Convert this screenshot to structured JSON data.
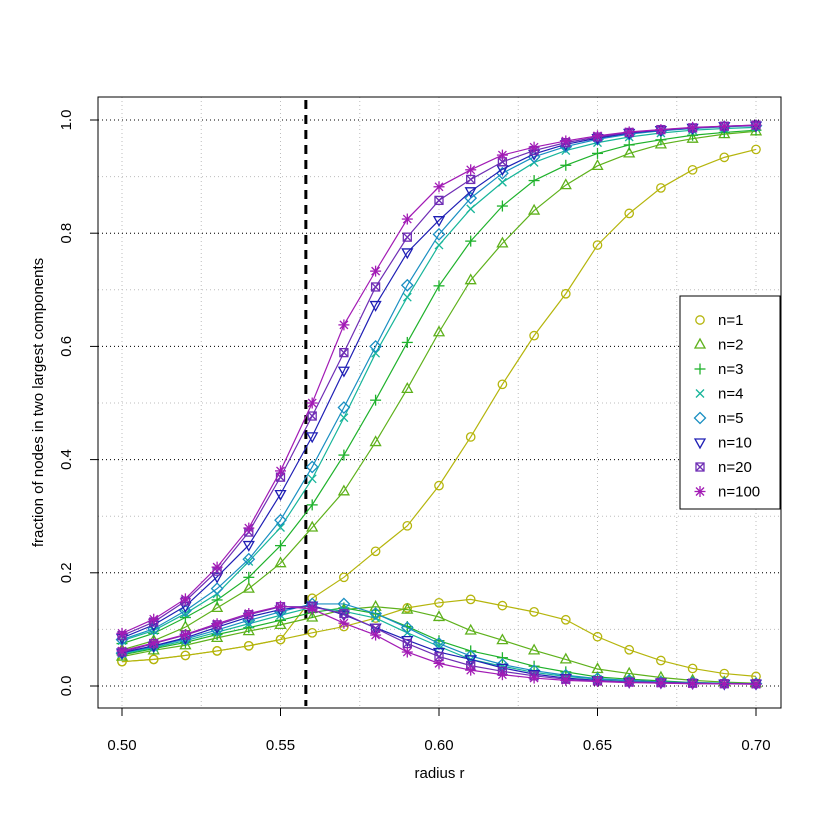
{
  "chart_data": {
    "type": "line",
    "xlabel": "radius r",
    "ylabel": "fraction of nodes in two largest components",
    "xlim": [
      0.5,
      0.7
    ],
    "ylim": [
      0.0,
      1.0
    ],
    "x_ticks": [
      "0.50",
      "0.55",
      "0.60",
      "0.65",
      "0.70"
    ],
    "y_ticks": [
      "0.0",
      "0.2",
      "0.4",
      "0.6",
      "0.8",
      "1.0"
    ],
    "grid": true,
    "legend_position": "right",
    "vline": {
      "x": 0.558,
      "style": "dashed",
      "color": "#000000"
    },
    "x": [
      0.5,
      0.51,
      0.52,
      0.53,
      0.54,
      0.55,
      0.56,
      0.57,
      0.58,
      0.59,
      0.6,
      0.61,
      0.62,
      0.63,
      0.64,
      0.65,
      0.66,
      0.67,
      0.68,
      0.69,
      0.7
    ],
    "series": [
      {
        "name": "n=1",
        "color": "#b5b50c",
        "marker": "circle",
        "largest": [
          0.043,
          0.047,
          0.054,
          0.062,
          0.071,
          0.082,
          0.155,
          0.192,
          0.238,
          0.283,
          0.354,
          0.44,
          0.533,
          0.619,
          0.693,
          0.779,
          0.835,
          0.88,
          0.912,
          0.934,
          0.948
        ],
        "second": [
          0.043,
          0.047,
          0.054,
          0.062,
          0.071,
          0.082,
          0.094,
          0.105,
          0.12,
          0.138,
          0.147,
          0.153,
          0.142,
          0.131,
          0.117,
          0.087,
          0.064,
          0.045,
          0.031,
          0.022,
          0.017
        ]
      },
      {
        "name": "n=2",
        "color": "#5eb11b",
        "marker": "triangle",
        "largest": [
          0.064,
          0.08,
          0.104,
          0.138,
          0.172,
          0.217,
          0.28,
          0.344,
          0.431,
          0.525,
          0.625,
          0.717,
          0.782,
          0.84,
          0.885,
          0.919,
          0.941,
          0.957,
          0.967,
          0.975,
          0.98
        ],
        "second": [
          0.052,
          0.063,
          0.072,
          0.085,
          0.097,
          0.108,
          0.121,
          0.135,
          0.14,
          0.135,
          0.122,
          0.098,
          0.081,
          0.063,
          0.047,
          0.03,
          0.022,
          0.015,
          0.01,
          0.007,
          0.005
        ]
      },
      {
        "name": "n=3",
        "color": "#1fb22c",
        "marker": "plus",
        "largest": [
          0.075,
          0.093,
          0.121,
          0.152,
          0.192,
          0.248,
          0.32,
          0.408,
          0.505,
          0.607,
          0.707,
          0.786,
          0.848,
          0.893,
          0.92,
          0.941,
          0.956,
          0.965,
          0.973,
          0.978,
          0.982
        ],
        "second": [
          0.055,
          0.066,
          0.077,
          0.091,
          0.103,
          0.116,
          0.13,
          0.138,
          0.128,
          0.105,
          0.08,
          0.062,
          0.05,
          0.035,
          0.025,
          0.016,
          0.012,
          0.009,
          0.006,
          0.005,
          0.004
        ]
      },
      {
        "name": "n=4",
        "color": "#17b59a",
        "marker": "x",
        "largest": [
          0.08,
          0.098,
          0.128,
          0.163,
          0.22,
          0.28,
          0.366,
          0.474,
          0.588,
          0.687,
          0.779,
          0.843,
          0.89,
          0.925,
          0.946,
          0.96,
          0.97,
          0.977,
          0.982,
          0.985,
          0.987
        ],
        "second": [
          0.057,
          0.068,
          0.08,
          0.095,
          0.11,
          0.125,
          0.139,
          0.132,
          0.12,
          0.094,
          0.07,
          0.047,
          0.035,
          0.024,
          0.017,
          0.012,
          0.009,
          0.007,
          0.005,
          0.004,
          0.004
        ]
      },
      {
        "name": "n=5",
        "color": "#1a8fc2",
        "marker": "diamond",
        "largest": [
          0.082,
          0.101,
          0.133,
          0.172,
          0.224,
          0.293,
          0.387,
          0.492,
          0.6,
          0.708,
          0.798,
          0.862,
          0.906,
          0.935,
          0.953,
          0.966,
          0.975,
          0.981,
          0.985,
          0.988,
          0.99
        ],
        "second": [
          0.058,
          0.07,
          0.083,
          0.099,
          0.116,
          0.131,
          0.145,
          0.145,
          0.128,
          0.103,
          0.075,
          0.053,
          0.038,
          0.027,
          0.019,
          0.013,
          0.01,
          0.007,
          0.006,
          0.005,
          0.004
        ]
      },
      {
        "name": "n=10",
        "color": "#1f1fb5",
        "marker": "triangle-down",
        "largest": [
          0.085,
          0.108,
          0.141,
          0.193,
          0.249,
          0.339,
          0.441,
          0.557,
          0.673,
          0.766,
          0.823,
          0.874,
          0.913,
          0.94,
          0.957,
          0.968,
          0.977,
          0.982,
          0.986,
          0.989,
          0.99
        ],
        "second": [
          0.059,
          0.071,
          0.085,
          0.104,
          0.122,
          0.135,
          0.142,
          0.126,
          0.103,
          0.081,
          0.06,
          0.047,
          0.032,
          0.021,
          0.014,
          0.01,
          0.007,
          0.006,
          0.005,
          0.004,
          0.004
        ]
      },
      {
        "name": "n=20",
        "color": "#6f2eb5",
        "marker": "boxed-x",
        "largest": [
          0.089,
          0.113,
          0.15,
          0.203,
          0.272,
          0.369,
          0.477,
          0.589,
          0.705,
          0.793,
          0.858,
          0.895,
          0.926,
          0.946,
          0.96,
          0.97,
          0.978,
          0.983,
          0.986,
          0.989,
          0.991
        ],
        "second": [
          0.06,
          0.075,
          0.09,
          0.108,
          0.126,
          0.14,
          0.14,
          0.128,
          0.102,
          0.075,
          0.052,
          0.036,
          0.026,
          0.018,
          0.012,
          0.009,
          0.007,
          0.006,
          0.005,
          0.004,
          0.004
        ]
      },
      {
        "name": "n=100",
        "color": "#a21bb5",
        "marker": "star",
        "largest": [
          0.093,
          0.118,
          0.154,
          0.21,
          0.279,
          0.38,
          0.5,
          0.638,
          0.733,
          0.825,
          0.882,
          0.912,
          0.938,
          0.952,
          0.963,
          0.972,
          0.979,
          0.983,
          0.987,
          0.989,
          0.991
        ],
        "second": [
          0.062,
          0.076,
          0.091,
          0.11,
          0.128,
          0.141,
          0.136,
          0.111,
          0.09,
          0.06,
          0.04,
          0.028,
          0.02,
          0.014,
          0.01,
          0.008,
          0.006,
          0.005,
          0.004,
          0.004,
          0.003
        ]
      }
    ]
  }
}
